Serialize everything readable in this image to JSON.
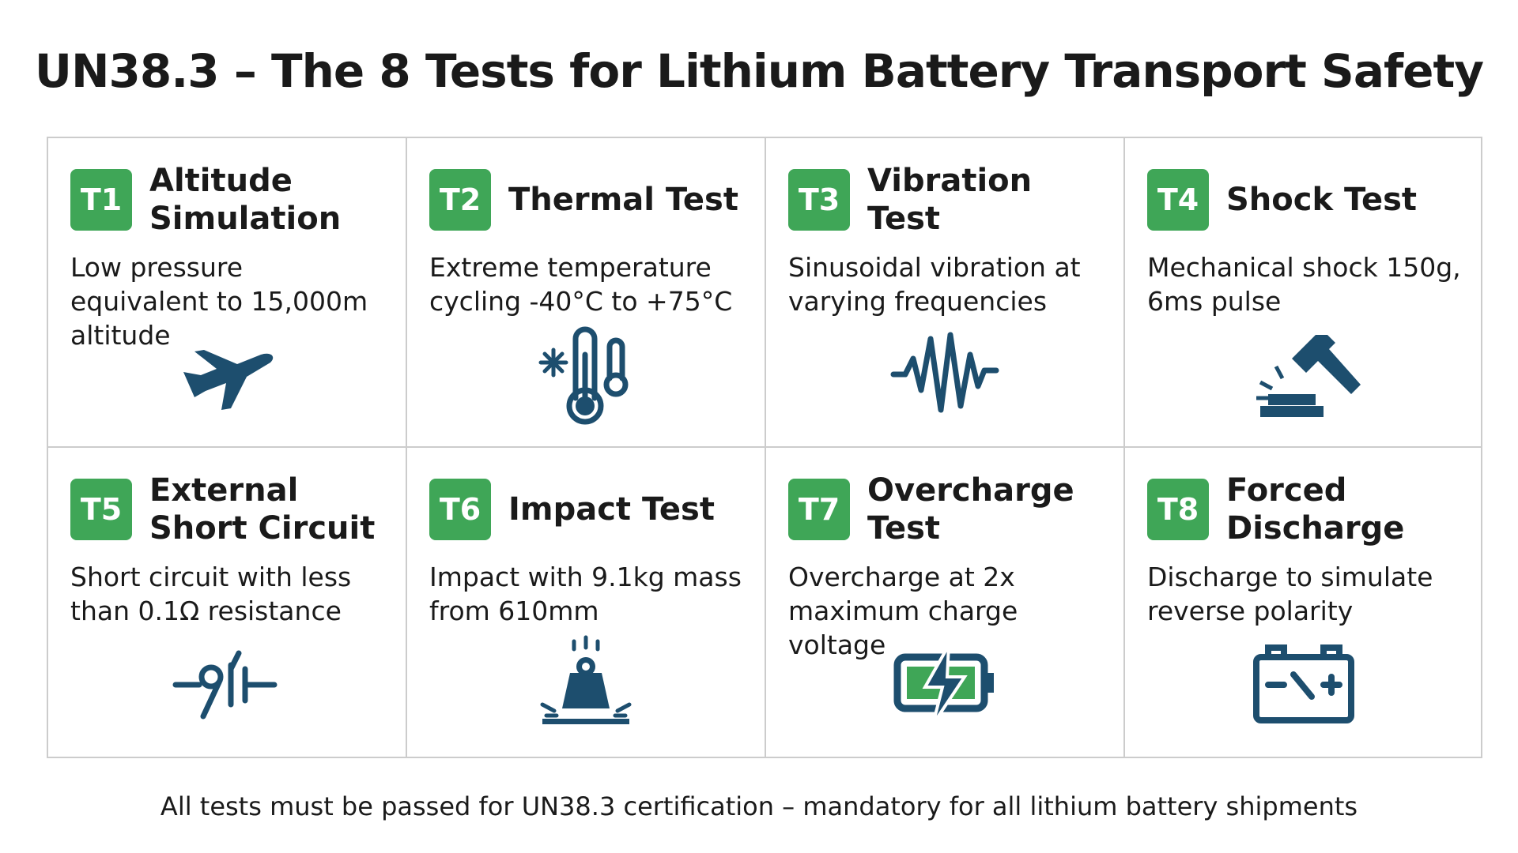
{
  "title": "UN38.3 – The 8 Tests for Lithium Battery Transport Safety",
  "tests": [
    {
      "badge": "T1",
      "title": "Altitude Simulation",
      "description": "Low pressure equivalent to 15,000m altitude"
    },
    {
      "badge": "T2",
      "title": "Thermal Test",
      "description": "Extreme temperature cycling -40°C to +75°C"
    },
    {
      "badge": "T3",
      "title": "Vibration Test",
      "description": "Sinusoidal vibration at varying frequencies"
    },
    {
      "badge": "T4",
      "title": "Shock Test",
      "description": "Mechanical shock 150g, 6ms pulse"
    },
    {
      "badge": "T5",
      "title": "External Short Circuit",
      "description": "Short circuit with less than 0.1Ω resistance"
    },
    {
      "badge": "T6",
      "title": "Impact Test",
      "description": "Impact with 9.1kg mass from 610mm"
    },
    {
      "badge": "T7",
      "title": "Overcharge Test",
      "description": "Overcharge at 2x maximum charge voltage"
    },
    {
      "badge": "T8",
      "title": "Forced Discharge",
      "description": "Discharge to simulate reverse polarity"
    }
  ],
  "footer": "All tests must be passed for UN38.3 certification – mandatory for all lithium battery shipments"
}
